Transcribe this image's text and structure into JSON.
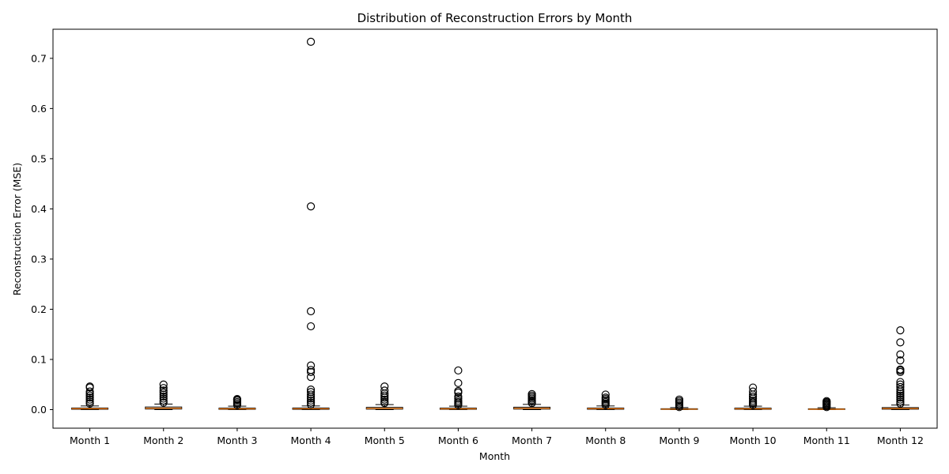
{
  "chart_data": {
    "type": "box",
    "title": "Distribution of Reconstruction Errors by Month",
    "xlabel": "Month",
    "ylabel": "Reconstruction Error (MSE)",
    "ylim": [
      -0.037,
      0.758
    ],
    "yticks": [
      0.0,
      0.1,
      0.2,
      0.3,
      0.4,
      0.5,
      0.6,
      0.7
    ],
    "ytick_labels": [
      "0.0",
      "0.1",
      "0.2",
      "0.3",
      "0.4",
      "0.5",
      "0.6",
      "0.7"
    ],
    "grid": false,
    "legend": "none",
    "colors": {
      "box": "#000000",
      "median": "#ff7f0e",
      "flier": "#000000"
    },
    "categories": [
      "Month 1",
      "Month 2",
      "Month 3",
      "Month 4",
      "Month 5",
      "Month 6",
      "Month 7",
      "Month 8",
      "Month 9",
      "Month 10",
      "Month 11",
      "Month 12"
    ],
    "boxes": [
      {
        "whislo": 0.0,
        "q1": 0.0007,
        "med": 0.0018,
        "q3": 0.0032,
        "whishi": 0.0072,
        "fliers": [
          0.012,
          0.016,
          0.02,
          0.024,
          0.028,
          0.032,
          0.036,
          0.044,
          0.046
        ]
      },
      {
        "whislo": 0.0,
        "q1": 0.0012,
        "med": 0.0028,
        "q3": 0.0052,
        "whishi": 0.011,
        "fliers": [
          0.014,
          0.018,
          0.022,
          0.026,
          0.03,
          0.034,
          0.038,
          0.043,
          0.05
        ]
      },
      {
        "whislo": 0.0,
        "q1": 0.0006,
        "med": 0.0016,
        "q3": 0.003,
        "whishi": 0.0068,
        "fliers": [
          0.009,
          0.012,
          0.015,
          0.018,
          0.02,
          0.021
        ]
      },
      {
        "whislo": 0.0,
        "q1": 0.0006,
        "med": 0.0017,
        "q3": 0.0032,
        "whishi": 0.0072,
        "fliers": [
          0.01,
          0.014,
          0.018,
          0.022,
          0.026,
          0.03,
          0.035,
          0.04,
          0.065,
          0.075,
          0.079,
          0.088,
          0.166,
          0.196,
          0.405,
          0.733
        ]
      },
      {
        "whislo": 0.0,
        "q1": 0.001,
        "med": 0.0024,
        "q3": 0.0045,
        "whishi": 0.01,
        "fliers": [
          0.013,
          0.016,
          0.02,
          0.024,
          0.028,
          0.032,
          0.038,
          0.046
        ]
      },
      {
        "whislo": 0.0,
        "q1": 0.0006,
        "med": 0.0016,
        "q3": 0.003,
        "whishi": 0.0068,
        "fliers": [
          0.009,
          0.012,
          0.015,
          0.018,
          0.022,
          0.026,
          0.034,
          0.037,
          0.053,
          0.078
        ]
      },
      {
        "whislo": 0.0,
        "q1": 0.0011,
        "med": 0.0026,
        "q3": 0.0048,
        "whishi": 0.0105,
        "fliers": [
          0.013,
          0.016,
          0.019,
          0.022,
          0.025,
          0.028,
          0.031
        ]
      },
      {
        "whislo": 0.0,
        "q1": 0.0007,
        "med": 0.0018,
        "q3": 0.0032,
        "whishi": 0.0072,
        "fliers": [
          0.009,
          0.012,
          0.015,
          0.018,
          0.021,
          0.024,
          0.03
        ]
      },
      {
        "whislo": 0.0,
        "q1": 0.0003,
        "med": 0.0009,
        "q3": 0.0018,
        "whishi": 0.004,
        "fliers": [
          0.005,
          0.008,
          0.011,
          0.014,
          0.017,
          0.02
        ]
      },
      {
        "whislo": 0.0,
        "q1": 0.0006,
        "med": 0.0016,
        "q3": 0.003,
        "whishi": 0.0068,
        "fliers": [
          0.009,
          0.012,
          0.015,
          0.018,
          0.022,
          0.026,
          0.03,
          0.036,
          0.044
        ]
      },
      {
        "whislo": 0.0,
        "q1": 0.0003,
        "med": 0.0008,
        "q3": 0.0017,
        "whishi": 0.0038,
        "fliers": [
          0.005,
          0.007,
          0.009,
          0.011,
          0.013,
          0.015,
          0.017
        ]
      },
      {
        "whislo": 0.0,
        "q1": 0.0009,
        "med": 0.0022,
        "q3": 0.004,
        "whishi": 0.009,
        "fliers": [
          0.012,
          0.016,
          0.02,
          0.024,
          0.028,
          0.032,
          0.036,
          0.04,
          0.045,
          0.05,
          0.055,
          0.075,
          0.078,
          0.08,
          0.098,
          0.11,
          0.134,
          0.158
        ]
      }
    ]
  }
}
